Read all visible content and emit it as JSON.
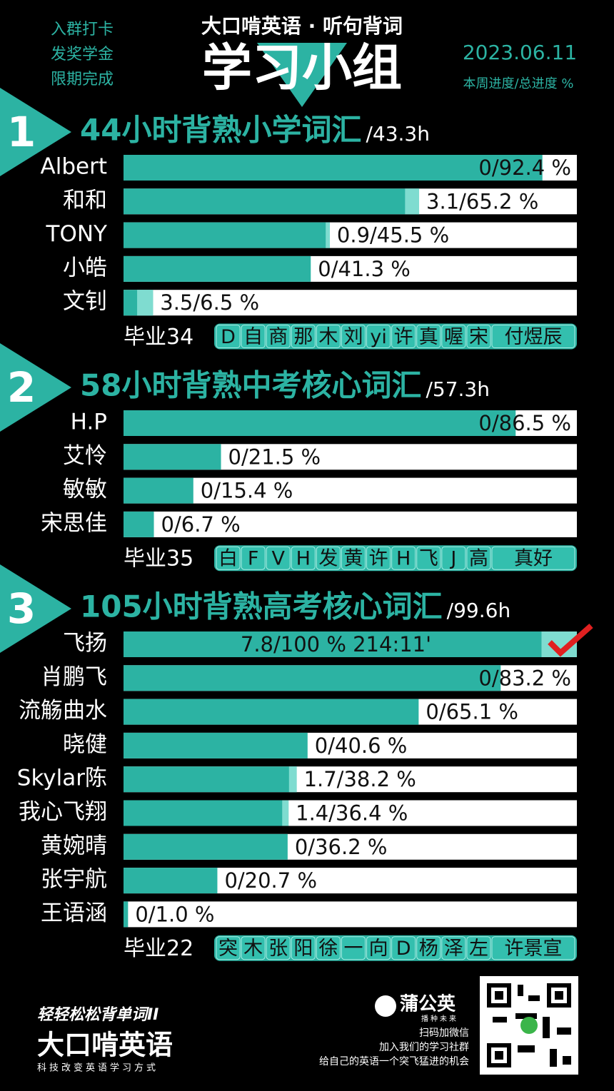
{
  "header": {
    "slogan": [
      "入群打卡",
      "发奖学金",
      "限期完成"
    ],
    "brand_title": "大口啃英语 · 听句背词",
    "title": "学习小组",
    "date": "2023.06.11",
    "legend": "本周进度/总进度 %"
  },
  "groups": [
    {
      "number": "1",
      "title": "44小时背熟小学词汇",
      "hours": "/43.3h",
      "members": [
        {
          "name": "Albert",
          "weekly": 0,
          "total": 92.4,
          "label": "0/92.4 %"
        },
        {
          "name": "和和",
          "weekly": 3.1,
          "total": 65.2,
          "label": "3.1/65.2 %"
        },
        {
          "name": "TONY",
          "weekly": 0.9,
          "total": 45.5,
          "label": "0.9/45.5 %"
        },
        {
          "name": "小皓",
          "weekly": 0,
          "total": 41.3,
          "label": "0/41.3 %"
        },
        {
          "name": "文钊",
          "weekly": 3.5,
          "total": 6.5,
          "label": "3.5/6.5 %"
        }
      ],
      "graduates": {
        "label": "毕业34",
        "names": [
          "D",
          "自",
          "商",
          "那",
          "木",
          "刘",
          "yi",
          "许",
          "真",
          "喔",
          "宋",
          "付煜辰"
        ]
      }
    },
    {
      "number": "2",
      "title": "58小时背熟中考核心词汇",
      "hours": "/57.3h",
      "members": [
        {
          "name": "H.P",
          "weekly": 0,
          "total": 86.5,
          "label": "0/86.5 %"
        },
        {
          "name": "艾怜",
          "weekly": 0,
          "total": 21.5,
          "label": "0/21.5 %"
        },
        {
          "name": "敏敏",
          "weekly": 0,
          "total": 15.4,
          "label": "0/15.4 %"
        },
        {
          "name": "宋思佳",
          "weekly": 0,
          "total": 6.7,
          "label": "0/6.7 %"
        }
      ],
      "graduates": {
        "label": "毕业35",
        "names": [
          "白",
          "F",
          "V",
          "H",
          "发",
          "黄",
          "许",
          "H",
          "飞",
          "J",
          "高",
          "真好"
        ]
      }
    },
    {
      "number": "3",
      "title": "105小时背熟高考核心词汇",
      "hours": "/99.6h",
      "members": [
        {
          "name": "飞扬",
          "weekly": 7.8,
          "total": 100,
          "label": "7.8/100 %  214:11'"
        },
        {
          "name": "肖鹏飞",
          "weekly": 0,
          "total": 83.2,
          "label": "0/83.2 %"
        },
        {
          "name": "流觞曲水",
          "weekly": 0,
          "total": 65.1,
          "label": "0/65.1 %"
        },
        {
          "name": "晓健",
          "weekly": 0,
          "total": 40.6,
          "label": "0/40.6 %"
        },
        {
          "name": "Skylar陈",
          "weekly": 1.7,
          "total": 38.2,
          "label": "1.7/38.2 %"
        },
        {
          "name": "我心飞翔",
          "weekly": 1.4,
          "total": 36.4,
          "label": "1.4/36.4 %"
        },
        {
          "name": "黄婉晴",
          "weekly": 0,
          "total": 36.2,
          "label": "0/36.2 %"
        },
        {
          "name": "张宇航",
          "weekly": 0,
          "total": 20.7,
          "label": "0/20.7 %"
        },
        {
          "name": "王语涵",
          "weekly": 0,
          "total": 1.0,
          "label": "0/1.0 %"
        }
      ],
      "graduates": {
        "label": "毕业22",
        "names": [
          "突",
          "木",
          "张",
          "阳",
          "徐",
          "一",
          "向",
          "D",
          "杨",
          "泽",
          "左",
          "许景宣"
        ]
      }
    }
  ],
  "footer": {
    "logo_top": "轻轻松松背单词II",
    "logo_main": "大口啃英语",
    "logo_sub": "科技改变英语学习方式",
    "partner": "蒲公英",
    "partner_sub": "播种未来",
    "qr_lines": [
      "扫码加微信",
      "加入我们的学习社群",
      "给自己的英语一个突飞猛进的机会"
    ]
  }
}
